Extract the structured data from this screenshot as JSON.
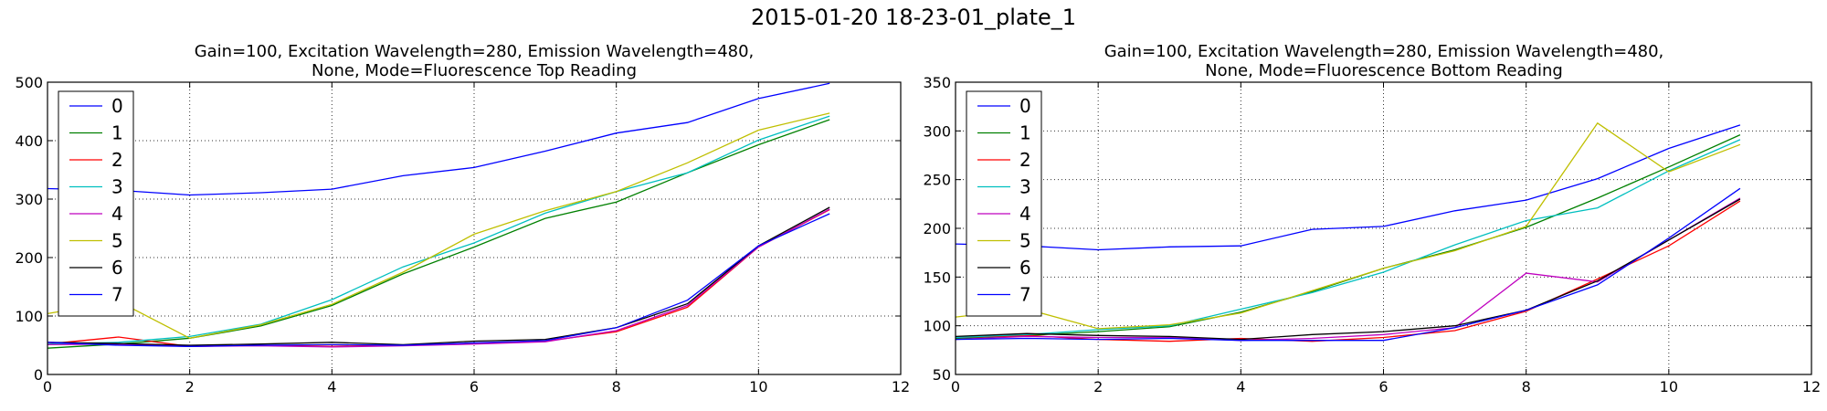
{
  "figure_title": "2015-01-20 18-23-01_plate_1",
  "chart_data": [
    {
      "type": "line",
      "title": "Gain=100, Excitation Wavelength=280, Emission Wavelength=480,",
      "title_line2": "None, Mode=Fluorescence Top Reading",
      "xlabel": "",
      "ylabel": "",
      "xlim": [
        0,
        12
      ],
      "ylim": [
        0,
        500
      ],
      "xticks": [
        0,
        2,
        4,
        6,
        8,
        10,
        12
      ],
      "yticks": [
        0,
        100,
        200,
        300,
        400,
        500
      ],
      "grid": true,
      "legend_position": "upper left",
      "x": [
        0,
        1,
        2,
        3,
        4,
        5,
        6,
        7,
        8,
        9,
        10,
        11
      ],
      "series": [
        {
          "name": "0",
          "color": "#0000ff",
          "values": [
            318,
            315,
            307,
            311,
            317,
            340,
            354,
            382,
            413,
            431,
            472,
            498
          ]
        },
        {
          "name": "1",
          "color": "#008000",
          "values": [
            45,
            52,
            62,
            83,
            118,
            172,
            218,
            267,
            295,
            345,
            393,
            436
          ]
        },
        {
          "name": "2",
          "color": "#ff0000",
          "values": [
            52,
            64,
            48,
            50,
            48,
            50,
            53,
            57,
            73,
            115,
            218,
            282
          ]
        },
        {
          "name": "3",
          "color": "#00bfbf",
          "values": [
            52,
            55,
            65,
            86,
            128,
            184,
            225,
            276,
            313,
            345,
            401,
            442
          ]
        },
        {
          "name": "4",
          "color": "#bf00bf",
          "values": [
            51,
            52,
            48,
            49,
            47,
            49,
            52,
            56,
            75,
            118,
            218,
            283
          ]
        },
        {
          "name": "5",
          "color": "#bfbf00",
          "values": [
            104,
            125,
            62,
            85,
            120,
            175,
            240,
            280,
            313,
            362,
            418,
            447
          ]
        },
        {
          "name": "6",
          "color": "#000000",
          "values": [
            55,
            53,
            50,
            52,
            55,
            51,
            57,
            60,
            80,
            121,
            220,
            286
          ]
        },
        {
          "name": "7",
          "color": "#0000ff",
          "values": [
            55,
            50,
            48,
            50,
            51,
            50,
            54,
            58,
            80,
            127,
            220,
            275
          ]
        }
      ]
    },
    {
      "type": "line",
      "title": "Gain=100, Excitation Wavelength=280, Emission Wavelength=480,",
      "title_line2": "None, Mode=Fluorescence Bottom Reading",
      "xlabel": "",
      "ylabel": "",
      "xlim": [
        0,
        12
      ],
      "ylim": [
        50,
        350
      ],
      "xticks": [
        0,
        2,
        4,
        6,
        8,
        10,
        12
      ],
      "yticks": [
        50,
        100,
        150,
        200,
        250,
        300,
        350
      ],
      "grid": true,
      "legend_position": "upper left",
      "x": [
        0,
        1,
        2,
        3,
        4,
        5,
        6,
        7,
        8,
        9,
        10,
        11
      ],
      "series": [
        {
          "name": "0",
          "color": "#0000ff",
          "values": [
            184,
            182,
            178,
            181,
            182,
            199,
            202,
            218,
            229,
            251,
            282,
            306
          ]
        },
        {
          "name": "1",
          "color": "#008000",
          "values": [
            87,
            90,
            94,
            99,
            114,
            135,
            159,
            178,
            201,
            231,
            263,
            296
          ]
        },
        {
          "name": "2",
          "color": "#ff0000",
          "values": [
            88,
            90,
            86,
            84,
            87,
            84,
            88,
            95,
            115,
            148,
            182,
            228
          ]
        },
        {
          "name": "3",
          "color": "#00bfbf",
          "values": [
            88,
            91,
            96,
            100,
            117,
            134,
            155,
            183,
            208,
            221,
            259,
            291
          ]
        },
        {
          "name": "4",
          "color": "#bf00bf",
          "values": [
            86,
            89,
            88,
            88,
            85,
            87,
            91,
            98,
            154,
            145,
            188,
            231
          ]
        },
        {
          "name": "5",
          "color": "#bfbf00",
          "values": [
            109,
            117,
            97,
            101,
            113,
            136,
            159,
            177,
            202,
            308,
            258,
            286
          ]
        },
        {
          "name": "6",
          "color": "#000000",
          "values": [
            89,
            92,
            90,
            89,
            86,
            91,
            94,
            100,
            116,
            146,
            188,
            230
          ]
        },
        {
          "name": "7",
          "color": "#0000ff",
          "values": [
            86,
            87,
            86,
            87,
            85,
            85,
            85,
            98,
            116,
            142,
            190,
            241
          ]
        }
      ]
    }
  ]
}
